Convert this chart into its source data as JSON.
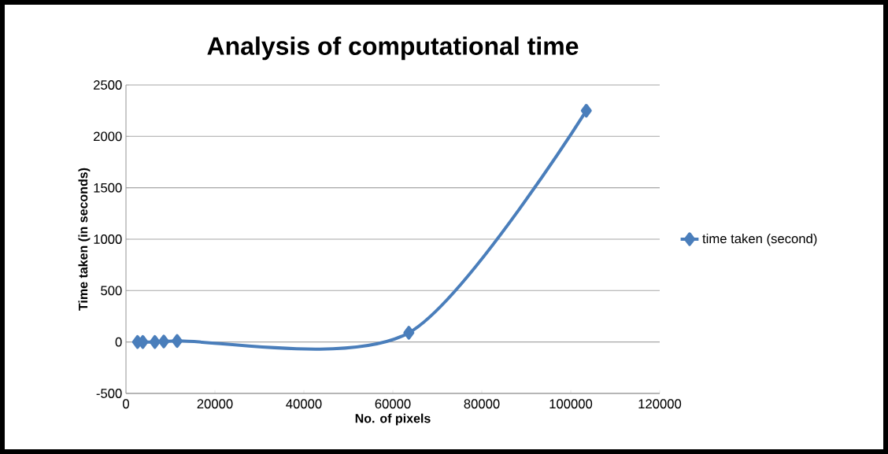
{
  "chart_data": {
    "type": "line",
    "title": "Analysis of computational time",
    "xlabel": "No. of pixels",
    "ylabel": "Time taken (in seconds)",
    "x": [
      2600,
      3800,
      6500,
      8500,
      11500,
      63600,
      103500
    ],
    "series": [
      {
        "name": "time taken (second)",
        "color": "#4a7ebb",
        "values": [
          0,
          0,
          0,
          5,
          10,
          90,
          2250
        ]
      }
    ],
    "xlim": [
      0,
      120000
    ],
    "ylim": [
      -500,
      2500
    ],
    "xticks": [
      0,
      20000,
      40000,
      60000,
      80000,
      100000,
      120000
    ],
    "yticks": [
      -500,
      0,
      500,
      1000,
      1500,
      2000,
      2500
    ],
    "grid": "y",
    "legend": "right",
    "marker": "diamond",
    "line_style": "solid"
  }
}
